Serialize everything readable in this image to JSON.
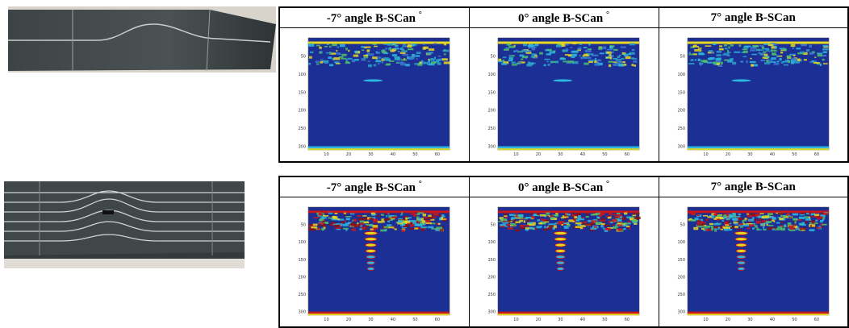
{
  "rows": [
    {
      "scans": [
        {
          "header": "-7° angle B-SCan",
          "sup": "°"
        },
        {
          "header": "0° angle B-SCan",
          "sup": "°"
        },
        {
          "header": "7° angle B-SCan"
        }
      ]
    },
    {
      "scans": [
        {
          "header": "-7° angle B-SCan",
          "sup": "°"
        },
        {
          "header": "0° angle B-SCan",
          "sup": "°"
        },
        {
          "header": "7° angle B-SCan"
        }
      ]
    }
  ],
  "scan_axes": {
    "yticks": [
      50,
      100,
      150,
      200,
      250,
      300
    ],
    "xticks": [
      10,
      20,
      30,
      40,
      50,
      60
    ]
  }
}
